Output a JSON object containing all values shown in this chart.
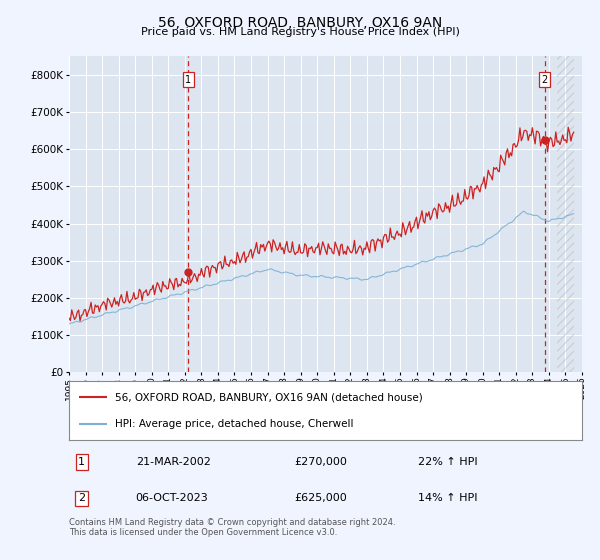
{
  "title": "56, OXFORD ROAD, BANBURY, OX16 9AN",
  "subtitle": "Price paid vs. HM Land Registry's House Price Index (HPI)",
  "background_color": "#f0f4ff",
  "plot_bg_color": "#dde6f0",
  "grid_color": "#ffffff",
  "red_line_label": "56, OXFORD ROAD, BANBURY, OX16 9AN (detached house)",
  "blue_line_label": "HPI: Average price, detached house, Cherwell",
  "annotation1": {
    "num": "1",
    "date": "21-MAR-2002",
    "price": "£270,000",
    "pct": "22% ↑ HPI"
  },
  "annotation2": {
    "num": "2",
    "date": "06-OCT-2023",
    "price": "£625,000",
    "pct": "14% ↑ HPI"
  },
  "footnote": "Contains HM Land Registry data © Crown copyright and database right 2024.\nThis data is licensed under the Open Government Licence v3.0.",
  "ylim": [
    0,
    850000
  ],
  "yticks": [
    0,
    100000,
    200000,
    300000,
    400000,
    500000,
    600000,
    700000,
    800000
  ],
  "sale1_x": 2002.22,
  "sale1_y": 270000,
  "sale2_x": 2023.75,
  "sale2_y": 625000,
  "xmin": 1995,
  "xmax": 2026,
  "hatch_start": 2024.5
}
